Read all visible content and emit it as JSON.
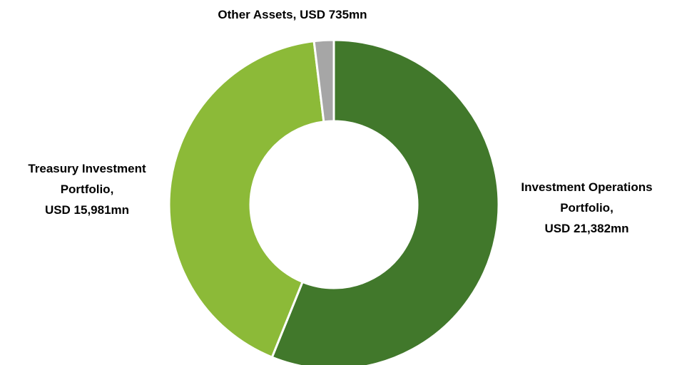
{
  "chart_data": {
    "type": "donut",
    "categories": [
      "Investment Operations Portfolio,",
      "Treasury Investment Portfolio,",
      "Other Assets,"
    ],
    "values": [
      21382,
      15981,
      735
    ],
    "value_labels": [
      "USD 21,382mn",
      "USD 15,981mn",
      "USD 735mn"
    ],
    "colors": [
      "#41782b",
      "#8cba38",
      "#a6a6a6"
    ]
  }
}
